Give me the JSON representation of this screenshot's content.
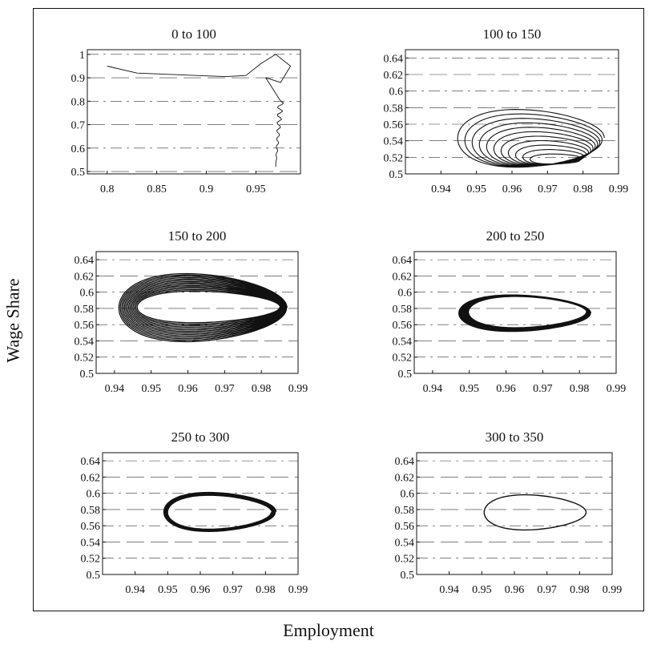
{
  "figure": {
    "ylabel": "Wage Share",
    "xlabel": "Employment"
  },
  "chart_data": [
    {
      "type": "line",
      "title": "0 to 100",
      "xlim": [
        0.78,
        0.995
      ],
      "ylim": [
        0.49,
        1.02
      ],
      "xticks": [
        0.8,
        0.85,
        0.9,
        0.95
      ],
      "xtick_labels": [
        "0.8",
        "0.85",
        "0.9",
        "0.95"
      ],
      "yticks": [
        0.5,
        0.6,
        0.7,
        0.8,
        0.9,
        1.0
      ],
      "ytick_labels": [
        "0.5",
        "0.6",
        "0.7",
        "0.8",
        "0.9",
        "1"
      ],
      "grid": "dashed",
      "curve": "transient-spiral",
      "series": [
        {
          "x": [
            0.8,
            0.83,
            0.86,
            0.89,
            0.92,
            0.94,
            0.955,
            0.97,
            0.985,
            0.975,
            0.96,
            0.975,
            0.97,
            0.97
          ],
          "y": [
            0.95,
            0.92,
            0.915,
            0.91,
            0.905,
            0.91,
            0.96,
            1.0,
            0.95,
            0.88,
            0.9,
            0.8,
            0.65,
            0.52
          ]
        }
      ]
    },
    {
      "type": "line",
      "title": "100 to 150",
      "xlim": [
        0.93,
        0.99
      ],
      "ylim": [
        0.5,
        0.65
      ],
      "xticks": [
        0.94,
        0.95,
        0.96,
        0.97,
        0.98,
        0.99
      ],
      "xtick_labels": [
        "0.94",
        "0.95",
        "0.96",
        "0.97",
        "0.98",
        "0.99"
      ],
      "yticks": [
        0.5,
        0.52,
        0.54,
        0.56,
        0.58,
        0.6,
        0.62,
        0.64
      ],
      "ytick_labels": [
        "0.5",
        "0.52",
        "0.54",
        "0.56",
        "0.58",
        "0.6",
        "0.62",
        "0.64"
      ],
      "grid": "dashed",
      "curve": "inward-spiral",
      "cycle": {
        "x_min": 0.94,
        "x_max": 0.986,
        "y_min": 0.508,
        "y_max": 0.579
      },
      "cycle_end": {
        "x_min": 0.965,
        "x_max": 0.979,
        "y_min": 0.512,
        "y_max": 0.52
      },
      "loops": 11
    },
    {
      "type": "line",
      "title": "150 to 200",
      "xlim": [
        0.935,
        0.99
      ],
      "ylim": [
        0.5,
        0.65
      ],
      "xticks": [
        0.94,
        0.95,
        0.96,
        0.97,
        0.98,
        0.99
      ],
      "xtick_labels": [
        "0.94",
        "0.95",
        "0.96",
        "0.97",
        "0.98",
        "0.99"
      ],
      "yticks": [
        0.5,
        0.52,
        0.54,
        0.56,
        0.58,
        0.6,
        0.62,
        0.64
      ],
      "ytick_labels": [
        "0.5",
        "0.52",
        "0.54",
        "0.56",
        "0.58",
        "0.6",
        "0.62",
        "0.64"
      ],
      "grid": "dashed",
      "curve": "expanding-spiral",
      "cycle": {
        "x_min": 0.937,
        "x_max": 0.987,
        "y_min": 0.538,
        "y_max": 0.623
      },
      "cycle_end": {
        "x_min": 0.943,
        "x_max": 0.985,
        "y_min": 0.563,
        "y_max": 0.6
      },
      "loops": 14
    },
    {
      "type": "line",
      "title": "200 to 250",
      "xlim": [
        0.935,
        0.99
      ],
      "ylim": [
        0.5,
        0.65
      ],
      "xticks": [
        0.94,
        0.95,
        0.96,
        0.97,
        0.98,
        0.99
      ],
      "xtick_labels": [
        "0.94",
        "0.95",
        "0.96",
        "0.97",
        "0.98",
        "0.99"
      ],
      "yticks": [
        0.5,
        0.52,
        0.54,
        0.56,
        0.58,
        0.6,
        0.62,
        0.64
      ],
      "ytick_labels": [
        "0.5",
        "0.52",
        "0.54",
        "0.56",
        "0.58",
        "0.6",
        "0.62",
        "0.64"
      ],
      "grid": "dashed",
      "curve": "limit-cycle",
      "cycle": {
        "x_min": 0.944,
        "x_max": 0.983,
        "y_min": 0.552,
        "y_max": 0.596
      },
      "cycle_end": {
        "x_min": 0.947,
        "x_max": 0.982,
        "y_min": 0.556,
        "y_max": 0.595
      },
      "loops": 9
    },
    {
      "type": "line",
      "title": "250 to 300",
      "xlim": [
        0.93,
        0.99
      ],
      "ylim": [
        0.5,
        0.65
      ],
      "xticks": [
        0.94,
        0.95,
        0.96,
        0.97,
        0.98,
        0.99
      ],
      "xtick_labels": [
        "0.94",
        "0.95",
        "0.96",
        "0.97",
        "0.98",
        "0.99"
      ],
      "yticks": [
        0.5,
        0.52,
        0.54,
        0.56,
        0.58,
        0.6,
        0.62,
        0.64
      ],
      "ytick_labels": [
        "0.5",
        "0.52",
        "0.54",
        "0.56",
        "0.58",
        "0.6",
        "0.62",
        "0.64"
      ],
      "grid": "dashed",
      "curve": "limit-cycle",
      "cycle": {
        "x_min": 0.946,
        "x_max": 0.983,
        "y_min": 0.554,
        "y_max": 0.6
      },
      "cycle_end": {
        "x_min": 0.947,
        "x_max": 0.982,
        "y_min": 0.555,
        "y_max": 0.598
      },
      "loops": 4
    },
    {
      "type": "line",
      "title": "300 to 350",
      "xlim": [
        0.93,
        0.99
      ],
      "ylim": [
        0.5,
        0.65
      ],
      "xticks": [
        0.94,
        0.95,
        0.96,
        0.97,
        0.98,
        0.99
      ],
      "xtick_labels": [
        "0.94",
        "0.95",
        "0.96",
        "0.97",
        "0.98",
        "0.99"
      ],
      "yticks": [
        0.5,
        0.52,
        0.54,
        0.56,
        0.58,
        0.6,
        0.62,
        0.64
      ],
      "ytick_labels": [
        "0.5",
        "0.52",
        "0.54",
        "0.56",
        "0.58",
        "0.6",
        "0.62",
        "0.64"
      ],
      "grid": "dashed",
      "curve": "limit-cycle",
      "cycle": {
        "x_min": 0.948,
        "x_max": 0.982,
        "y_min": 0.555,
        "y_max": 0.598
      },
      "cycle_end": {
        "x_min": 0.948,
        "x_max": 0.982,
        "y_min": 0.555,
        "y_max": 0.598
      },
      "loops": 1
    }
  ]
}
